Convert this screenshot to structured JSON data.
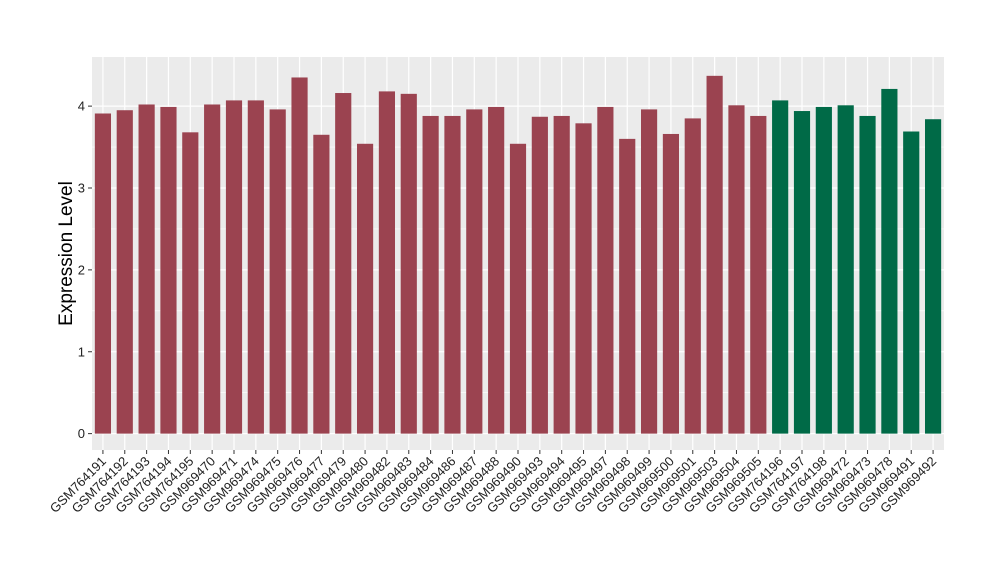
{
  "chart_data": {
    "type": "bar",
    "title": "",
    "xlabel": "",
    "ylabel": "Expression Level",
    "ylim": [
      -0.2,
      4.6
    ],
    "yticks": [
      0,
      1,
      2,
      3,
      4
    ],
    "grid": true,
    "legend": "none",
    "colors": {
      "group1": "#9b4350",
      "group2": "#006a47",
      "panel_bg": "#ebebeb",
      "grid": "#ffffff"
    },
    "categories": [
      "GSM764191",
      "GSM764192",
      "GSM764193",
      "GSM764194",
      "GSM764195",
      "GSM969470",
      "GSM969471",
      "GSM969474",
      "GSM969475",
      "GSM969476",
      "GSM969477",
      "GSM969479",
      "GSM969480",
      "GSM969482",
      "GSM969483",
      "GSM969484",
      "GSM969486",
      "GSM969487",
      "GSM969488",
      "GSM969490",
      "GSM969493",
      "GSM969494",
      "GSM969495",
      "GSM969497",
      "GSM969498",
      "GSM969499",
      "GSM969500",
      "GSM969501",
      "GSM969503",
      "GSM969504",
      "GSM969505",
      "GSM764196",
      "GSM764197",
      "GSM764198",
      "GSM969472",
      "GSM969473",
      "GSM969478",
      "GSM969491",
      "GSM969492"
    ],
    "values": [
      3.91,
      3.95,
      4.02,
      3.99,
      3.68,
      4.02,
      4.07,
      4.07,
      3.96,
      4.35,
      3.65,
      4.16,
      3.54,
      4.18,
      4.15,
      3.88,
      3.88,
      3.96,
      3.99,
      3.54,
      3.87,
      3.88,
      3.79,
      3.99,
      3.6,
      3.96,
      3.66,
      3.85,
      4.37,
      4.01,
      3.88,
      4.07,
      3.94,
      3.99,
      4.01,
      3.88,
      4.21,
      3.69,
      3.84
    ],
    "groups": [
      1,
      1,
      1,
      1,
      1,
      1,
      1,
      1,
      1,
      1,
      1,
      1,
      1,
      1,
      1,
      1,
      1,
      1,
      1,
      1,
      1,
      1,
      1,
      1,
      1,
      1,
      1,
      1,
      1,
      1,
      1,
      2,
      2,
      2,
      2,
      2,
      2,
      2,
      2
    ]
  }
}
